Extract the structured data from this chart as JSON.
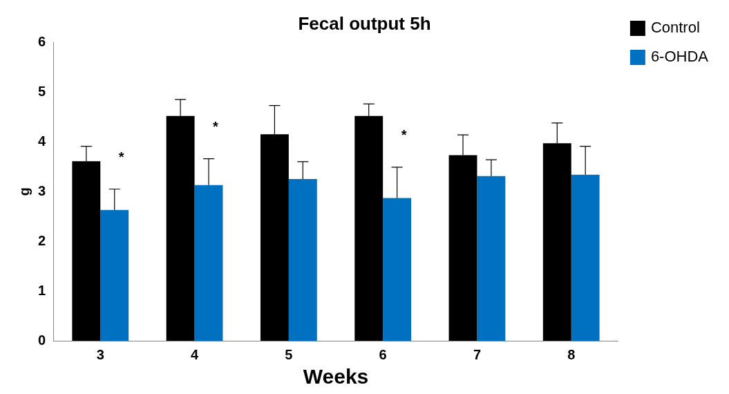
{
  "chart_data": {
    "type": "bar",
    "title": "Fecal output 5h",
    "xlabel": "Weeks",
    "ylabel": "g",
    "categories": [
      "3",
      "4",
      "5",
      "6",
      "7",
      "8"
    ],
    "series": [
      {
        "name": "Control",
        "color": "#000000",
        "values": [
          3.61,
          4.52,
          4.15,
          4.52,
          3.73,
          3.97
        ],
        "errors": [
          [
            3.61,
            3.91
          ],
          [
            4.52,
            4.85
          ],
          [
            4.15,
            4.73
          ],
          [
            4.52,
            4.76
          ],
          [
            3.73,
            4.14
          ],
          [
            3.97,
            4.38
          ]
        ]
      },
      {
        "name": "6-OHDA",
        "color": "#0070c0",
        "values": [
          2.63,
          3.13,
          3.25,
          2.87,
          3.31,
          3.34
        ],
        "errors": [
          [
            2.63,
            3.05
          ],
          [
            3.13,
            3.66
          ],
          [
            3.25,
            3.6
          ],
          [
            2.87,
            3.49
          ],
          [
            3.31,
            3.64
          ],
          [
            3.34,
            3.91
          ]
        ]
      }
    ],
    "ylim": [
      0,
      6
    ],
    "yticks": [
      0,
      1,
      2,
      3,
      4,
      5,
      6
    ],
    "grid": false,
    "legend": "top right",
    "marker": "square",
    "annotations": [
      {
        "text": "*",
        "x": "3",
        "y": 3.05
      },
      {
        "text": "*",
        "x": "4",
        "y": 3.66
      },
      {
        "text": "*",
        "x": "6",
        "y": 3.49
      }
    ]
  }
}
